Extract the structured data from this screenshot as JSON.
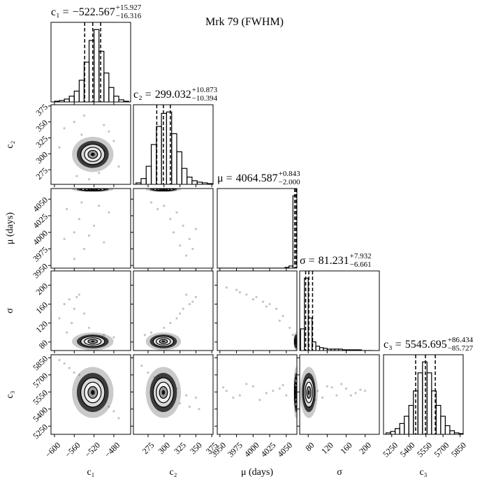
{
  "chart_data": {
    "type": "corner",
    "title": "Mrk 79 (FWHM)",
    "parameters": [
      {
        "label": "c₁",
        "title": "c₁ =",
        "median": {
          "value": -522.567,
          "label": "−522.567"
        },
        "plus": {
          "value": 15.927,
          "label": "+15.927"
        },
        "minus": {
          "value": 16.316,
          "label": "−16.316"
        },
        "lim": [
          -607,
          -446
        ],
        "ticks": [
          {
            "value": -600,
            "label": "−600"
          },
          {
            "value": -560,
            "label": "−560"
          },
          {
            "value": -520,
            "label": "−520"
          },
          {
            "value": -480,
            "label": "−480"
          }
        ],
        "bins": [
          -600,
          -590,
          -580,
          -570,
          -560,
          -550,
          -540,
          -530,
          -520,
          -510,
          -500,
          -490,
          -480,
          -470,
          -460,
          -450
        ],
        "counts": [
          1,
          2,
          4,
          8,
          15,
          30,
          55,
          85,
          100,
          70,
          40,
          20,
          8,
          3,
          1
        ],
        "count_lim": [
          0,
          110
        ]
      },
      {
        "label": "c₂",
        "title": "c₂ =",
        "median": 299.032,
        "plus": {
          "value": 10.873,
          "label": "+10.873"
        },
        "minus": {
          "value": 10.394,
          "label": "−10.394"
        },
        "lim": [
          252,
          377
        ],
        "ticks": [
          275,
          300,
          325,
          350,
          375
        ],
        "bins": [
          256,
          264,
          272,
          280,
          288,
          296,
          304,
          312,
          320,
          328,
          336,
          344,
          352,
          360,
          368,
          376
        ],
        "counts": [
          2,
          8,
          25,
          55,
          80,
          98,
          100,
          70,
          45,
          22,
          10,
          5,
          3,
          2,
          1
        ],
        "count_lim": [
          0,
          110
        ]
      },
      {
        "label": "μ (days)",
        "title": "μ =",
        "median": 4064.587,
        "plus": {
          "value": 0.843,
          "label": "+0.843"
        },
        "minus": {
          "value": 2.0,
          "label": "−2.000"
        },
        "lim": [
          3946,
          4066
        ],
        "ticks": [
          3950,
          3975,
          4000,
          4025,
          4050
        ],
        "bins": [
          3946,
          3952,
          3958,
          3964,
          3970,
          3976,
          3982,
          3988,
          3994,
          4000,
          4006,
          4012,
          4018,
          4024,
          4030,
          4036,
          4042,
          4048,
          4054,
          4060,
          4066
        ],
        "counts": [
          0,
          0,
          0,
          0,
          0,
          0,
          0,
          0,
          0,
          0,
          0,
          0,
          0,
          0,
          0,
          0,
          0,
          1,
          3,
          100
        ],
        "count_lim": [
          0,
          110
        ]
      },
      {
        "label": "σ",
        "title": "σ =",
        "median": 81.231,
        "plus": {
          "value": 7.932,
          "label": "+7.932"
        },
        "minus": {
          "value": 6.661,
          "label": "−6.661"
        },
        "lim": [
          62,
          230
        ],
        "ticks": [
          80,
          120,
          160,
          200
        ],
        "bins": [
          64,
          72,
          80,
          88,
          96,
          104,
          112,
          120,
          128,
          136,
          144,
          152,
          160,
          168,
          176,
          184,
          192,
          200,
          208,
          216
        ],
        "counts": [
          30,
          100,
          45,
          12,
          6,
          4,
          3,
          2,
          2,
          2,
          2,
          1,
          1,
          1,
          1,
          1,
          0,
          0,
          0
        ],
        "count_lim": [
          0,
          110
        ]
      },
      {
        "label": "c₃",
        "title": "c₃ =",
        "median": 5545.695,
        "plus": {
          "value": 86.434,
          "label": "+86.434"
        },
        "minus": {
          "value": 85.727,
          "label": "−85.727"
        },
        "lim": [
          5178,
          5877
        ],
        "ticks": [
          5250,
          5400,
          5550,
          5700,
          5850
        ],
        "bins": [
          5200,
          5240,
          5280,
          5320,
          5360,
          5400,
          5440,
          5480,
          5520,
          5560,
          5600,
          5640,
          5680,
          5720,
          5760,
          5800,
          5840,
          5880
        ],
        "counts": [
          2,
          4,
          8,
          15,
          25,
          40,
          60,
          85,
          100,
          85,
          60,
          40,
          25,
          12,
          5,
          2,
          1
        ],
        "count_lim": [
          0,
          110
        ]
      }
    ],
    "pairs": [
      {
        "x": [
          -580,
          -560,
          -545,
          -500,
          -480,
          -470,
          -590,
          -555,
          -510,
          -490,
          -540,
          -530
        ],
        "y": [
          340,
          350,
          330,
          345,
          320,
          280,
          310,
          265,
          270,
          335,
          360,
          260
        ]
      },
      {
        "x": [
          -580,
          -560,
          -550,
          -540,
          -520,
          -500,
          -490,
          -575,
          -560,
          -530,
          -510,
          -545
        ],
        "y": [
          3990,
          4000,
          4020,
          3975,
          4010,
          3985,
          4030,
          4035,
          3960,
          3995,
          4040,
          4045
        ]
      },
      {
        "x": [
          280,
          300,
          320,
          330,
          340,
          310,
          325,
          345,
          290,
          315,
          335,
          350
        ],
        "y": [
          4045,
          4040,
          4030,
          4010,
          3990,
          4020,
          3980,
          3975,
          4035,
          4000,
          3965,
          4005
        ]
      },
      {
        "x": [
          -580,
          -570,
          -560,
          -550,
          -540,
          -590,
          -565,
          -530,
          -575,
          -500,
          -480,
          -555
        ],
        "y": [
          160,
          170,
          150,
          180,
          140,
          130,
          120,
          110,
          100,
          95,
          90,
          175
        ]
      },
      {
        "x": [
          270,
          280,
          300,
          310,
          320,
          330,
          340,
          350,
          290,
          325,
          335,
          345
        ],
        "y": [
          95,
          100,
          110,
          120,
          130,
          150,
          160,
          175,
          90,
          140,
          180,
          165
        ]
      },
      {
        "x": [
          3960,
          3975,
          3990,
          4005,
          4015,
          4025,
          4035,
          4045,
          4055,
          3980,
          4000,
          4020,
          4040,
          4060
        ],
        "y": [
          195,
          190,
          180,
          175,
          165,
          160,
          150,
          135,
          110,
          185,
          170,
          155,
          125,
          95
        ]
      },
      {
        "x": [
          -580,
          -570,
          -560,
          -540,
          -520,
          -500,
          -480,
          -470,
          -550,
          -510,
          -490,
          -590
        ],
        "y": [
          5800,
          5760,
          5720,
          5650,
          5560,
          5480,
          5380,
          5320,
          5700,
          5500,
          5420,
          5830
        ]
      },
      {
        "x": [
          265,
          275,
          285,
          300,
          310,
          325,
          340,
          350,
          320,
          335,
          290,
          355
        ],
        "y": [
          5780,
          5720,
          5680,
          5600,
          5530,
          5450,
          5420,
          5500,
          5580,
          5520,
          5650,
          5400
        ]
      },
      {
        "x": [
          3960,
          3980,
          4000,
          4020,
          4040,
          3970,
          3990,
          4010,
          4030,
          4050,
          3955,
          4045
        ],
        "y": [
          5560,
          5520,
          5600,
          5540,
          5580,
          5500,
          5620,
          5480,
          5560,
          5520,
          5590,
          5610
        ]
      },
      {
        "x": [
          100,
          120,
          140,
          160,
          180,
          200,
          110,
          150,
          170,
          130,
          190,
          95
        ],
        "y": [
          5560,
          5600,
          5520,
          5580,
          5540,
          5560,
          5500,
          5620,
          5520,
          5590,
          5570,
          5480
        ]
      }
    ]
  }
}
